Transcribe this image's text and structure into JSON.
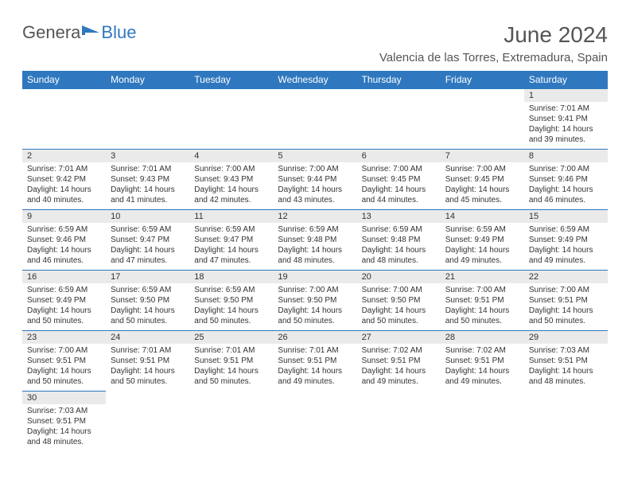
{
  "logo": {
    "part1": "Genera",
    "part2": "Blue"
  },
  "title": "June 2024",
  "location": "Valencia de las Torres, Extremadura, Spain",
  "colors": {
    "header_bg": "#2f78bf",
    "header_fg": "#ffffff",
    "daynum_bg": "#eaeaea",
    "border": "#2f78bf",
    "text": "#333333",
    "title_text": "#555555"
  },
  "day_headers": [
    "Sunday",
    "Monday",
    "Tuesday",
    "Wednesday",
    "Thursday",
    "Friday",
    "Saturday"
  ],
  "weeks": [
    [
      null,
      null,
      null,
      null,
      null,
      null,
      {
        "n": "1",
        "sunrise": "Sunrise: 7:01 AM",
        "sunset": "Sunset: 9:41 PM",
        "day1": "Daylight: 14 hours",
        "day2": "and 39 minutes."
      }
    ],
    [
      {
        "n": "2",
        "sunrise": "Sunrise: 7:01 AM",
        "sunset": "Sunset: 9:42 PM",
        "day1": "Daylight: 14 hours",
        "day2": "and 40 minutes."
      },
      {
        "n": "3",
        "sunrise": "Sunrise: 7:01 AM",
        "sunset": "Sunset: 9:43 PM",
        "day1": "Daylight: 14 hours",
        "day2": "and 41 minutes."
      },
      {
        "n": "4",
        "sunrise": "Sunrise: 7:00 AM",
        "sunset": "Sunset: 9:43 PM",
        "day1": "Daylight: 14 hours",
        "day2": "and 42 minutes."
      },
      {
        "n": "5",
        "sunrise": "Sunrise: 7:00 AM",
        "sunset": "Sunset: 9:44 PM",
        "day1": "Daylight: 14 hours",
        "day2": "and 43 minutes."
      },
      {
        "n": "6",
        "sunrise": "Sunrise: 7:00 AM",
        "sunset": "Sunset: 9:45 PM",
        "day1": "Daylight: 14 hours",
        "day2": "and 44 minutes."
      },
      {
        "n": "7",
        "sunrise": "Sunrise: 7:00 AM",
        "sunset": "Sunset: 9:45 PM",
        "day1": "Daylight: 14 hours",
        "day2": "and 45 minutes."
      },
      {
        "n": "8",
        "sunrise": "Sunrise: 7:00 AM",
        "sunset": "Sunset: 9:46 PM",
        "day1": "Daylight: 14 hours",
        "day2": "and 46 minutes."
      }
    ],
    [
      {
        "n": "9",
        "sunrise": "Sunrise: 6:59 AM",
        "sunset": "Sunset: 9:46 PM",
        "day1": "Daylight: 14 hours",
        "day2": "and 46 minutes."
      },
      {
        "n": "10",
        "sunrise": "Sunrise: 6:59 AM",
        "sunset": "Sunset: 9:47 PM",
        "day1": "Daylight: 14 hours",
        "day2": "and 47 minutes."
      },
      {
        "n": "11",
        "sunrise": "Sunrise: 6:59 AM",
        "sunset": "Sunset: 9:47 PM",
        "day1": "Daylight: 14 hours",
        "day2": "and 47 minutes."
      },
      {
        "n": "12",
        "sunrise": "Sunrise: 6:59 AM",
        "sunset": "Sunset: 9:48 PM",
        "day1": "Daylight: 14 hours",
        "day2": "and 48 minutes."
      },
      {
        "n": "13",
        "sunrise": "Sunrise: 6:59 AM",
        "sunset": "Sunset: 9:48 PM",
        "day1": "Daylight: 14 hours",
        "day2": "and 48 minutes."
      },
      {
        "n": "14",
        "sunrise": "Sunrise: 6:59 AM",
        "sunset": "Sunset: 9:49 PM",
        "day1": "Daylight: 14 hours",
        "day2": "and 49 minutes."
      },
      {
        "n": "15",
        "sunrise": "Sunrise: 6:59 AM",
        "sunset": "Sunset: 9:49 PM",
        "day1": "Daylight: 14 hours",
        "day2": "and 49 minutes."
      }
    ],
    [
      {
        "n": "16",
        "sunrise": "Sunrise: 6:59 AM",
        "sunset": "Sunset: 9:49 PM",
        "day1": "Daylight: 14 hours",
        "day2": "and 50 minutes."
      },
      {
        "n": "17",
        "sunrise": "Sunrise: 6:59 AM",
        "sunset": "Sunset: 9:50 PM",
        "day1": "Daylight: 14 hours",
        "day2": "and 50 minutes."
      },
      {
        "n": "18",
        "sunrise": "Sunrise: 6:59 AM",
        "sunset": "Sunset: 9:50 PM",
        "day1": "Daylight: 14 hours",
        "day2": "and 50 minutes."
      },
      {
        "n": "19",
        "sunrise": "Sunrise: 7:00 AM",
        "sunset": "Sunset: 9:50 PM",
        "day1": "Daylight: 14 hours",
        "day2": "and 50 minutes."
      },
      {
        "n": "20",
        "sunrise": "Sunrise: 7:00 AM",
        "sunset": "Sunset: 9:50 PM",
        "day1": "Daylight: 14 hours",
        "day2": "and 50 minutes."
      },
      {
        "n": "21",
        "sunrise": "Sunrise: 7:00 AM",
        "sunset": "Sunset: 9:51 PM",
        "day1": "Daylight: 14 hours",
        "day2": "and 50 minutes."
      },
      {
        "n": "22",
        "sunrise": "Sunrise: 7:00 AM",
        "sunset": "Sunset: 9:51 PM",
        "day1": "Daylight: 14 hours",
        "day2": "and 50 minutes."
      }
    ],
    [
      {
        "n": "23",
        "sunrise": "Sunrise: 7:00 AM",
        "sunset": "Sunset: 9:51 PM",
        "day1": "Daylight: 14 hours",
        "day2": "and 50 minutes."
      },
      {
        "n": "24",
        "sunrise": "Sunrise: 7:01 AM",
        "sunset": "Sunset: 9:51 PM",
        "day1": "Daylight: 14 hours",
        "day2": "and 50 minutes."
      },
      {
        "n": "25",
        "sunrise": "Sunrise: 7:01 AM",
        "sunset": "Sunset: 9:51 PM",
        "day1": "Daylight: 14 hours",
        "day2": "and 50 minutes."
      },
      {
        "n": "26",
        "sunrise": "Sunrise: 7:01 AM",
        "sunset": "Sunset: 9:51 PM",
        "day1": "Daylight: 14 hours",
        "day2": "and 49 minutes."
      },
      {
        "n": "27",
        "sunrise": "Sunrise: 7:02 AM",
        "sunset": "Sunset: 9:51 PM",
        "day1": "Daylight: 14 hours",
        "day2": "and 49 minutes."
      },
      {
        "n": "28",
        "sunrise": "Sunrise: 7:02 AM",
        "sunset": "Sunset: 9:51 PM",
        "day1": "Daylight: 14 hours",
        "day2": "and 49 minutes."
      },
      {
        "n": "29",
        "sunrise": "Sunrise: 7:03 AM",
        "sunset": "Sunset: 9:51 PM",
        "day1": "Daylight: 14 hours",
        "day2": "and 48 minutes."
      }
    ],
    [
      {
        "n": "30",
        "sunrise": "Sunrise: 7:03 AM",
        "sunset": "Sunset: 9:51 PM",
        "day1": "Daylight: 14 hours",
        "day2": "and 48 minutes."
      },
      null,
      null,
      null,
      null,
      null,
      null
    ]
  ]
}
